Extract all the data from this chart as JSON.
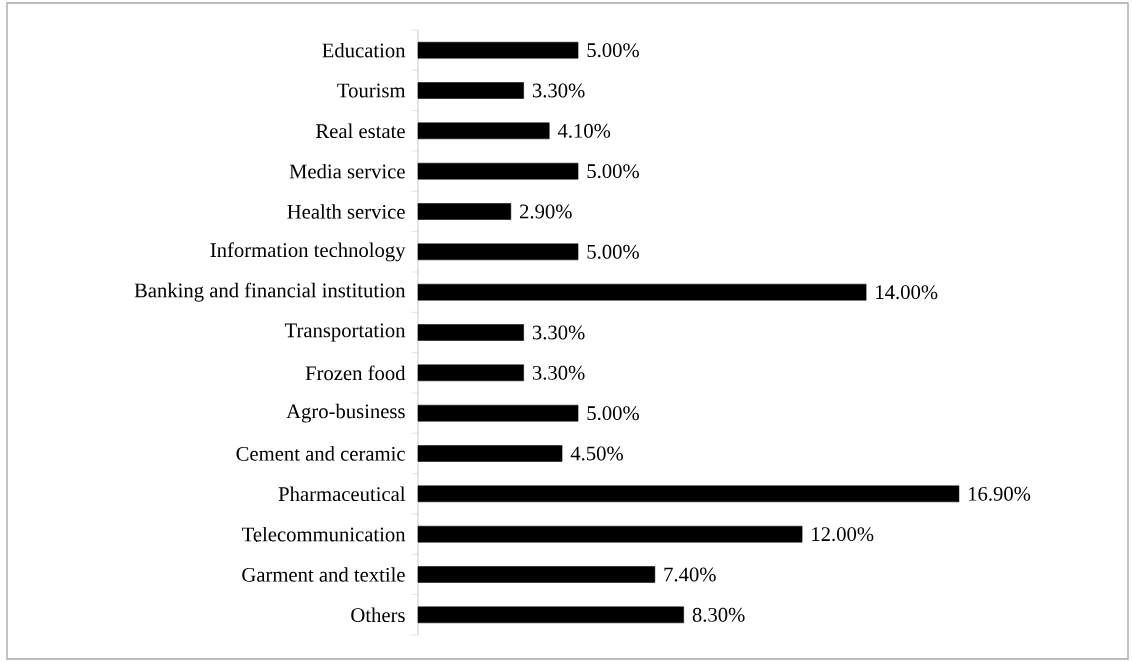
{
  "chart_data": {
    "type": "bar",
    "orientation": "horizontal",
    "categories": [
      "Education",
      "Tourism",
      "Real estate",
      "Media service",
      "Health service",
      "Information technology",
      "Banking and financial institution",
      "Transportation",
      "Frozen food",
      "Agro-business",
      "Cement and ceramic",
      "Pharmaceutical",
      "Telecommunication",
      "Garment and textile",
      "Others"
    ],
    "values": [
      5.0,
      3.3,
      4.1,
      5.0,
      2.9,
      5.0,
      14.0,
      3.3,
      3.3,
      5.0,
      4.5,
      16.9,
      12.0,
      7.4,
      8.3
    ],
    "value_labels": [
      "5.00%",
      "3.30%",
      "4.10%",
      "5.00%",
      "2.90%",
      "5.00%",
      "14.00%",
      "3.30%",
      "3.30%",
      "5.00%",
      "4.50%",
      "16.90%",
      "12.00%",
      "7.40%",
      "8.30%"
    ],
    "color": "#000000"
  }
}
